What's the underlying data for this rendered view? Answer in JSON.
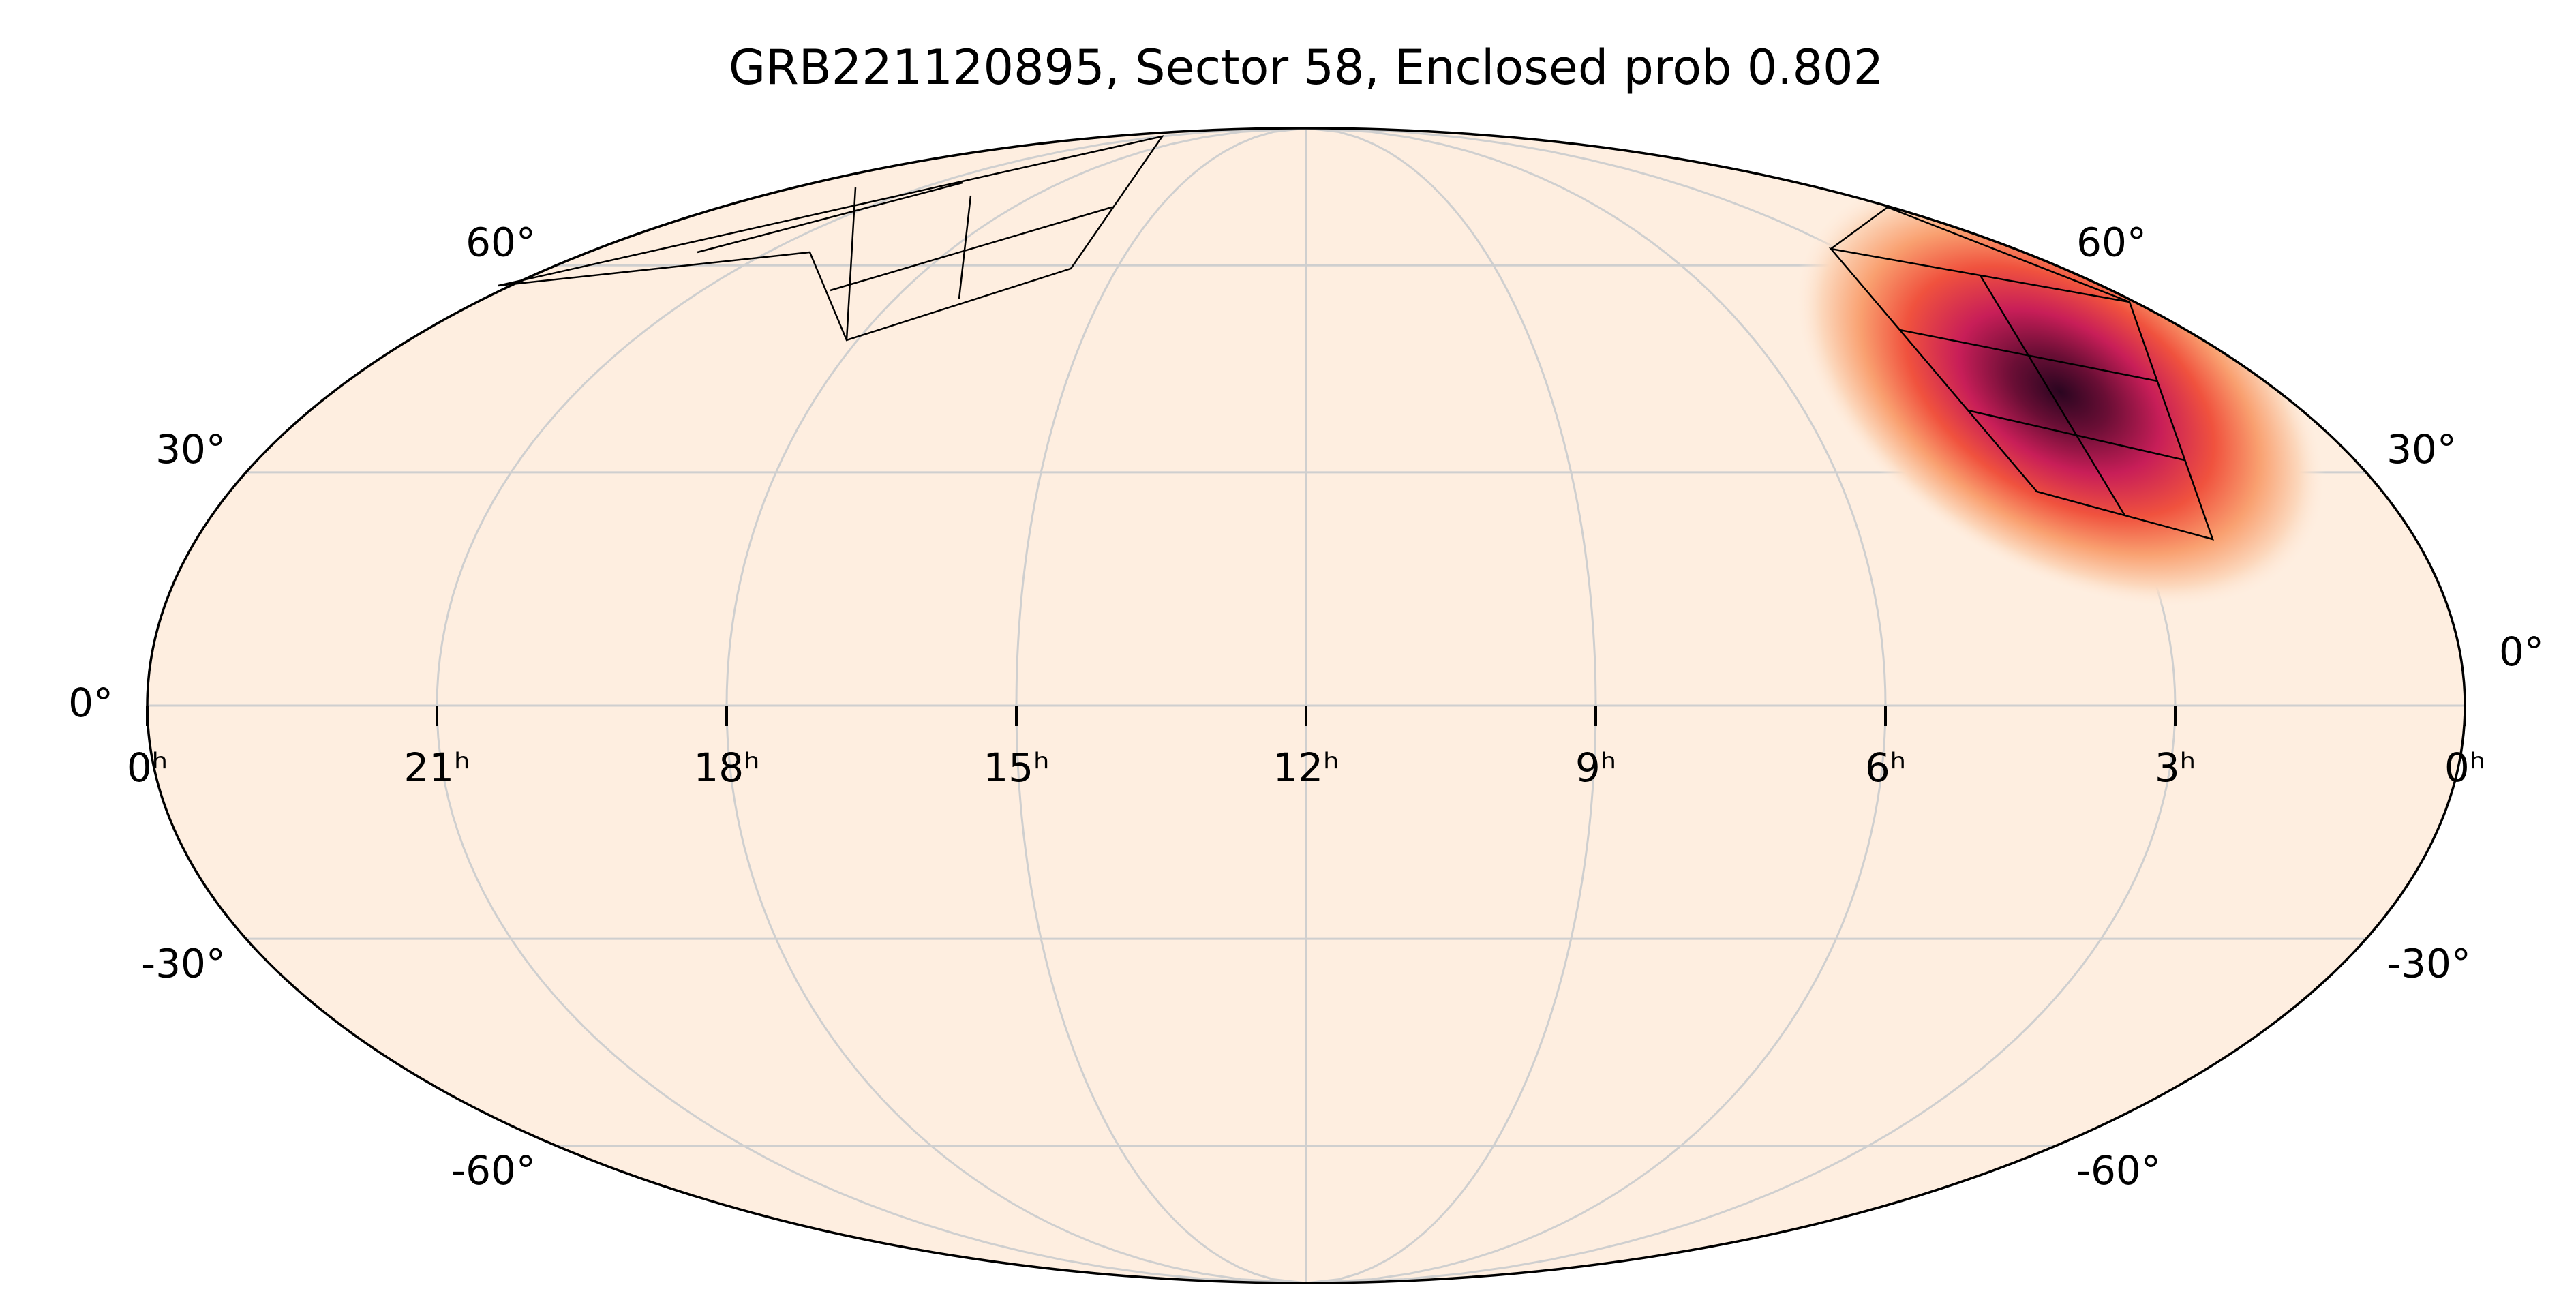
{
  "chart_data": {
    "type": "skymap",
    "projection": "mollweide",
    "title": "GRB221120895, Sector 58, Enclosed prob 0.802",
    "xlim": [
      24,
      0
    ],
    "xticks": [
      {
        "value": 24,
        "label": "0ʰ"
      },
      {
        "value": 21,
        "label": "21ʰ"
      },
      {
        "value": 18,
        "label": "18ʰ"
      },
      {
        "value": 15,
        "label": "15ʰ"
      },
      {
        "value": 12,
        "label": "12ʰ"
      },
      {
        "value": 9,
        "label": "9ʰ"
      },
      {
        "value": 6,
        "label": "6ʰ"
      },
      {
        "value": 3,
        "label": "3ʰ"
      },
      {
        "value": 0,
        "label": "0ʰ"
      }
    ],
    "ylim": [
      -90,
      90
    ],
    "yticks": [
      {
        "value": -60,
        "label": "-60°"
      },
      {
        "value": -30,
        "label": "-30°"
      },
      {
        "value": 0,
        "label": "0°"
      },
      {
        "value": 30,
        "label": "30°"
      },
      {
        "value": 60,
        "label": "60°"
      }
    ],
    "grid": true,
    "hotspot": {
      "ra": 2.7,
      "dec": 41
    }
  }
}
